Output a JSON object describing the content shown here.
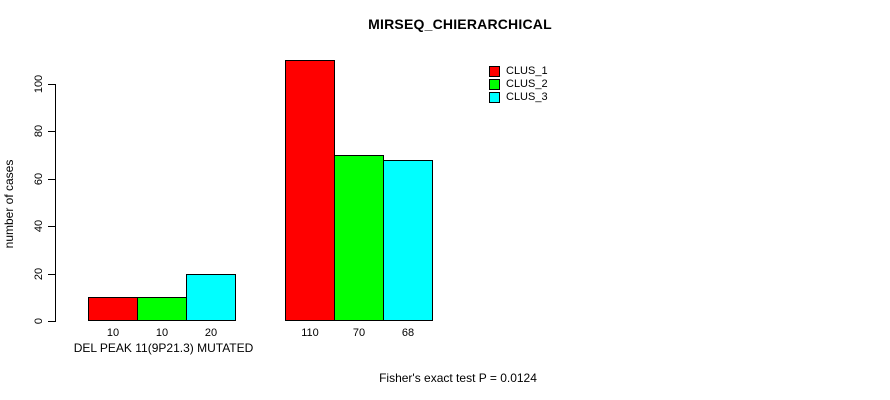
{
  "chart_data": {
    "type": "bar",
    "title": "MIRSEQ_CHIERARCHICAL",
    "ylabel": "number of cases",
    "xlabel": "DEL PEAK 11(9P21.3) MUTATED",
    "annotation": "Fisher's exact test P = 0.0124",
    "group_labels": [
      "DEL PEAK 11(9P21.3) MUTATED",
      ""
    ],
    "series": [
      {
        "name": "CLUS_1",
        "color": "#ff0000",
        "values": [
          10,
          110
        ]
      },
      {
        "name": "CLUS_2",
        "color": "#00ff00",
        "values": [
          10,
          70
        ]
      },
      {
        "name": "CLUS_3",
        "color": "#00ffff",
        "values": [
          20,
          68
        ]
      }
    ],
    "bar_value_labels": [
      [
        10,
        10,
        20
      ],
      [
        110,
        70,
        68
      ]
    ],
    "yticks": [
      0,
      20,
      40,
      60,
      80,
      100
    ],
    "ylim": [
      0,
      100
    ],
    "legend_position": "top-right",
    "grid": false,
    "colors": {
      "background": "#ffffff",
      "axis": "#000000",
      "text": "#000000"
    }
  }
}
